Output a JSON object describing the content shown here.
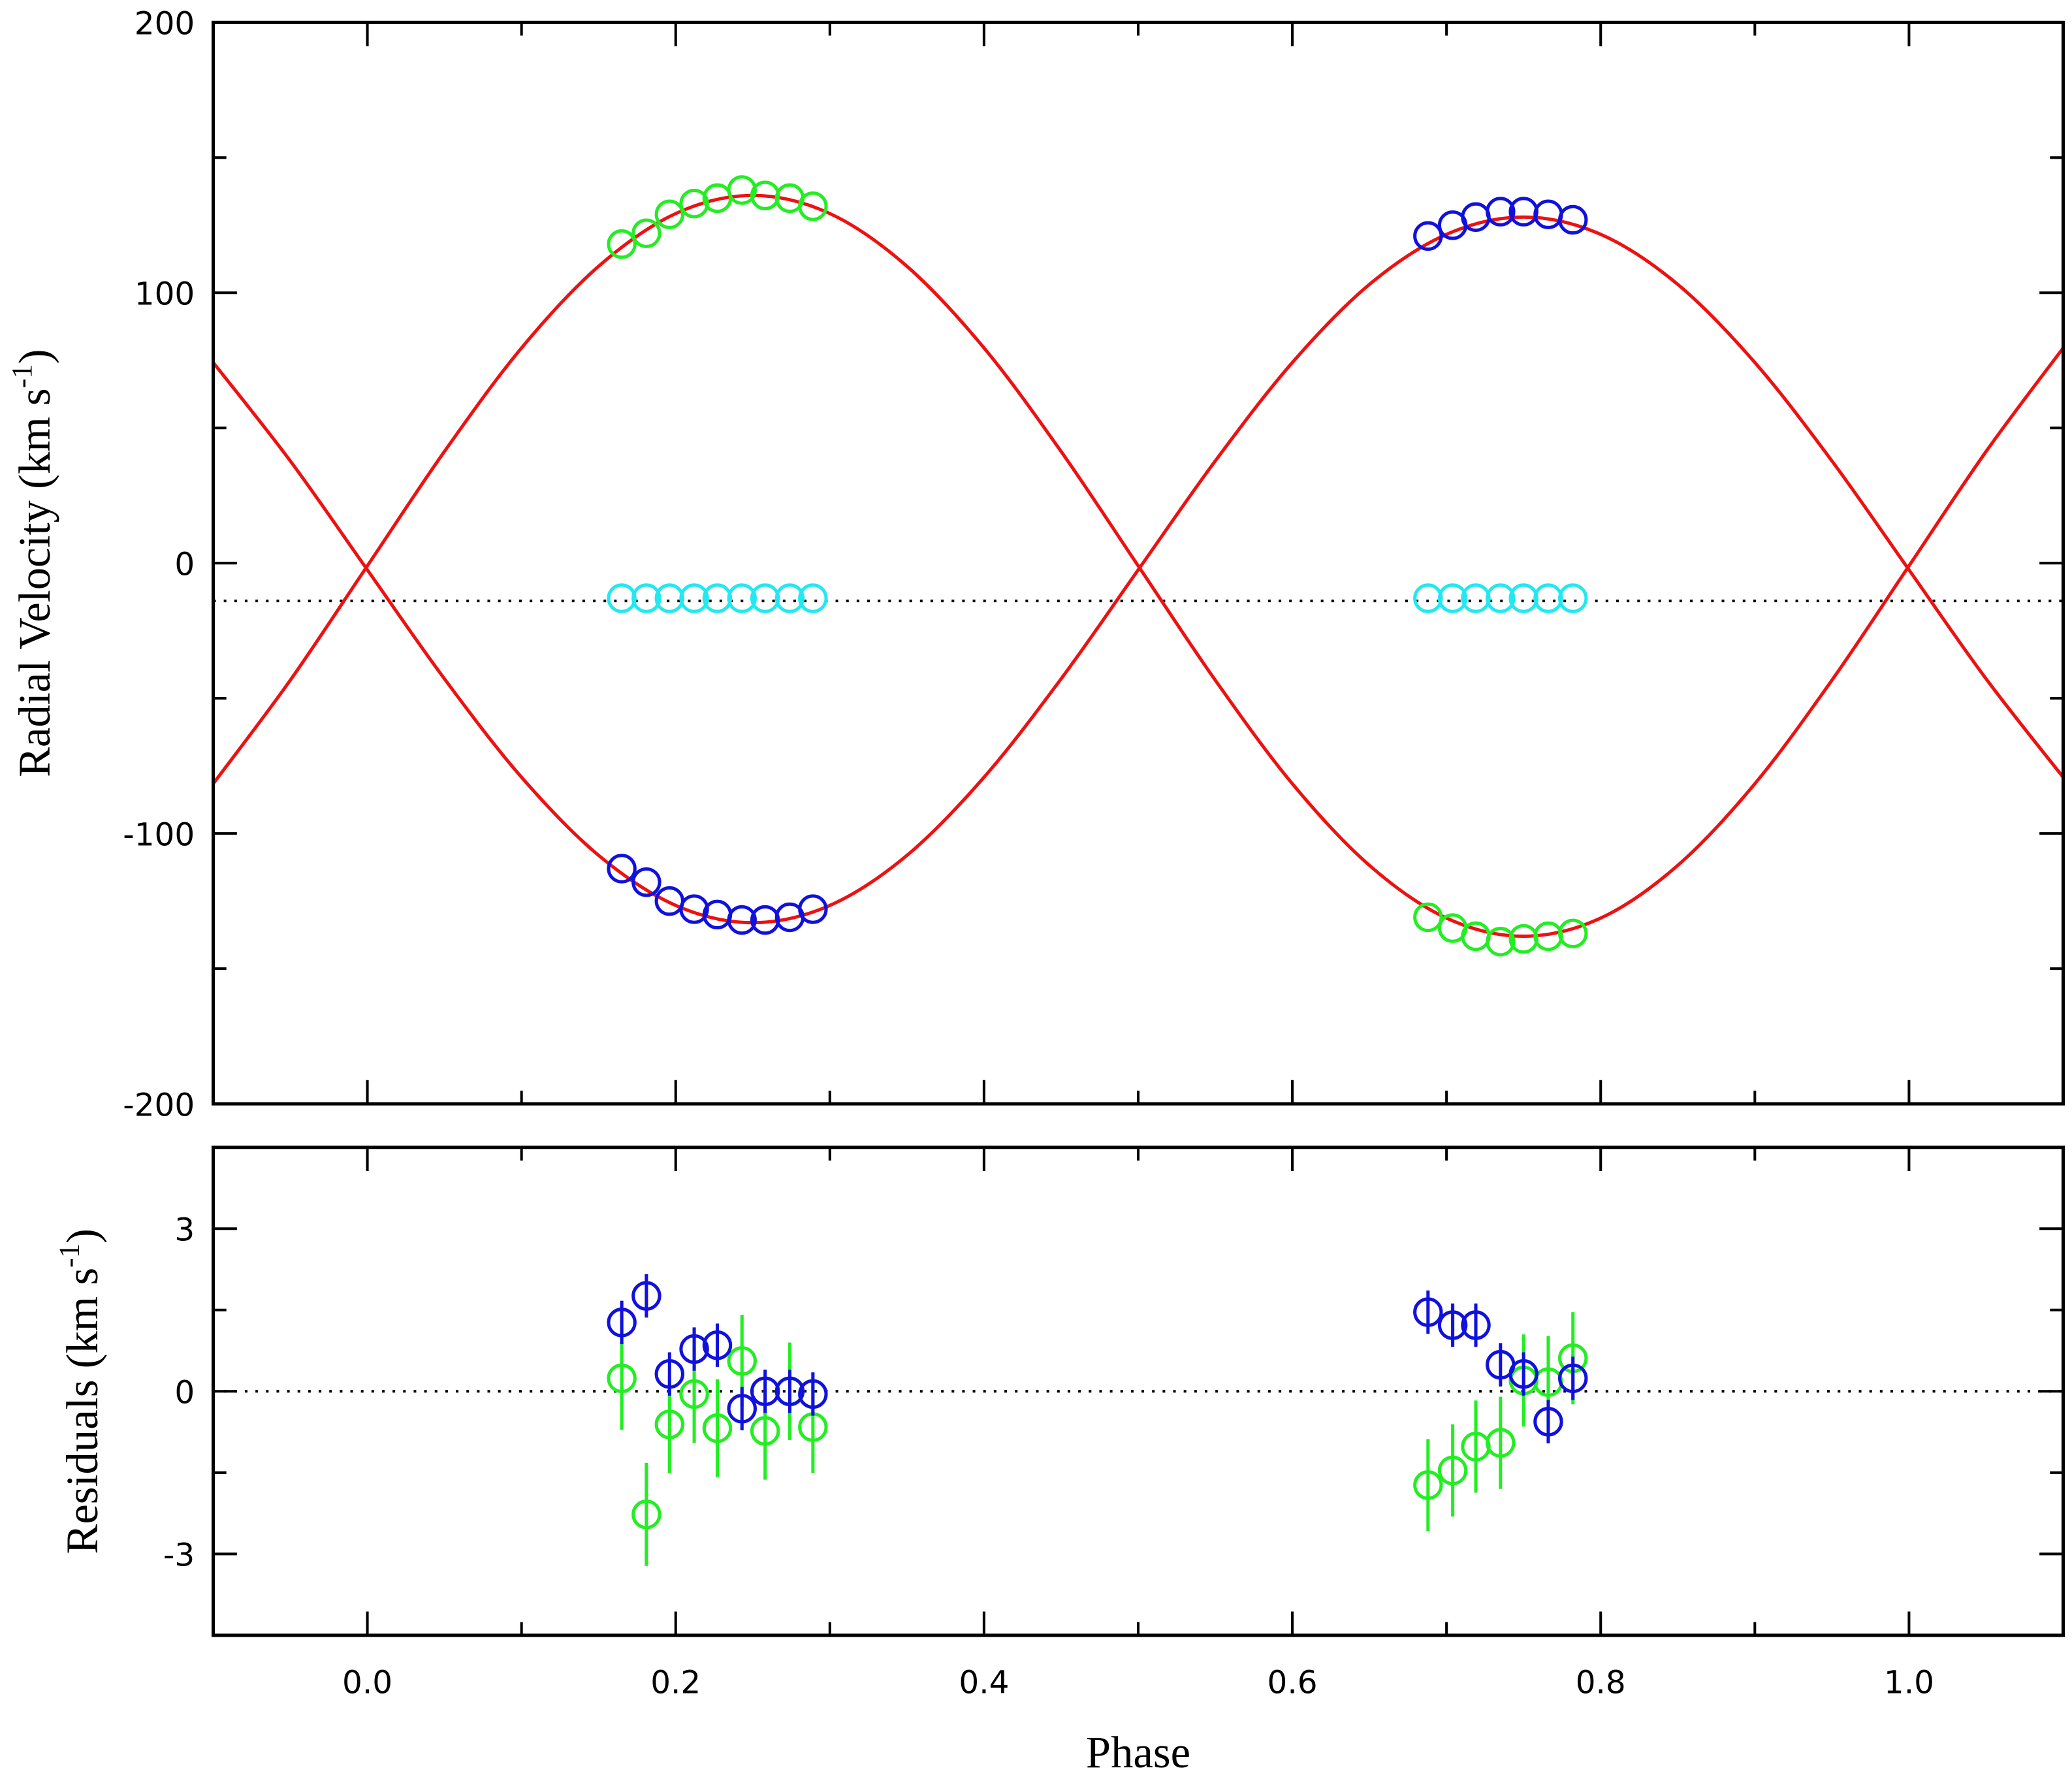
{
  "chart_data": [
    {
      "type": "scatter",
      "ylabel": {
        "text": "Radial Velocity (km s",
        "superscript": "-1",
        "close": ")"
      },
      "xlim": [
        -0.1,
        1.1
      ],
      "ylim": [
        -200,
        200
      ],
      "yticks": [
        -200,
        -100,
        0,
        100,
        200
      ],
      "yminor": [
        -150,
        -50,
        50,
        150
      ],
      "xticks": [
        {
          "value": 0,
          "label": "0.0"
        },
        0.2,
        0.4,
        0.6,
        0.8,
        {
          "value": 1,
          "label": "1.0"
        }
      ],
      "xminor": [
        0.1,
        0.3,
        0.5,
        0.7,
        0.9
      ],
      "reference_line": -14,
      "series": [
        {
          "style": "line",
          "color": "#ee1111",
          "x": [
            -0.1,
            -0.05,
            0,
            0.05,
            0.1,
            0.15,
            0.2,
            0.25,
            0.3,
            0.35,
            0.4,
            0.45,
            0.5,
            0.55,
            0.6,
            0.65,
            0.7,
            0.75,
            0.8,
            0.85,
            0.9,
            0.95,
            1.0,
            1.05,
            1.1
          ],
          "values": [
            -81.6,
            -43.3,
            -1,
            41.3,
            79.6,
            109.8,
            129.3,
            136,
            129.3,
            109.8,
            79.6,
            41.3,
            -1,
            -43.3,
            -81.6,
            -111.8,
            -131.3,
            -138,
            -131.3,
            -111.8,
            -81.6,
            -43.3,
            -1,
            41.3,
            79.6
          ]
        },
        {
          "style": "line",
          "color": "#ee1111",
          "x": [
            -0.1,
            -0.05,
            0,
            0.05,
            0.1,
            0.15,
            0.2,
            0.25,
            0.3,
            0.35,
            0.4,
            0.45,
            0.5,
            0.55,
            0.6,
            0.65,
            0.7,
            0.75,
            0.8,
            0.85,
            0.9,
            0.95,
            1.0,
            1.05,
            1.1
          ],
          "values": [
            74.2,
            37.8,
            -2.5,
            -42.8,
            -79.2,
            -108.1,
            -126.6,
            -133,
            -126.6,
            -108.1,
            -79.2,
            -42.8,
            -2.5,
            37.8,
            74.2,
            103.1,
            121.6,
            128,
            121.6,
            103.1,
            74.2,
            37.8,
            -2.5,
            -42.8,
            -79.2
          ]
        },
        {
          "style": "marker",
          "color": "#22ee22",
          "x": [
            0.165,
            0.181,
            0.196,
            0.212,
            0.227,
            0.243,
            0.258,
            0.274,
            0.289
          ],
          "values": [
            118,
            122,
            129,
            133,
            135,
            138,
            136,
            135,
            132
          ]
        },
        {
          "style": "marker",
          "color": "#1111dd",
          "x": [
            0.165,
            0.181,
            0.196,
            0.212,
            0.227,
            0.243,
            0.258,
            0.274,
            0.289
          ],
          "values": [
            -113,
            -118,
            -125,
            -128,
            -130,
            -132,
            -132,
            -131,
            -128
          ]
        },
        {
          "style": "marker",
          "color": "#22e8f0",
          "x": [
            0.165,
            0.181,
            0.196,
            0.212,
            0.227,
            0.243,
            0.258,
            0.274,
            0.289
          ],
          "values": [
            -13,
            -13,
            -13,
            -13,
            -13,
            -13,
            -13,
            -13,
            -13
          ]
        },
        {
          "style": "marker",
          "color": "#1111dd",
          "x": [
            0.688,
            0.704,
            0.719,
            0.735,
            0.75,
            0.766,
            0.782
          ],
          "values": [
            121,
            125,
            128,
            130,
            130,
            129,
            127
          ]
        },
        {
          "style": "marker",
          "color": "#22ee22",
          "x": [
            0.688,
            0.704,
            0.719,
            0.735,
            0.75,
            0.766,
            0.782
          ],
          "values": [
            -131,
            -135,
            -138,
            -140,
            -139,
            -138,
            -137
          ]
        },
        {
          "style": "marker",
          "color": "#22e8f0",
          "x": [
            0.688,
            0.704,
            0.719,
            0.735,
            0.75,
            0.766,
            0.782
          ],
          "values": [
            -13,
            -13,
            -13,
            -13,
            -13,
            -13,
            -13
          ]
        }
      ]
    },
    {
      "type": "scatter",
      "ylabel": {
        "text": "Residuals  (km s",
        "superscript": "-1",
        "close": ")"
      },
      "xlabel": "Phase",
      "xlim": [
        -0.1,
        1.1
      ],
      "ylim": [
        -4.5,
        4.5
      ],
      "yticks": [
        -3,
        0,
        3
      ],
      "yminor": [
        -1.5,
        1.5
      ],
      "xticks": [
        {
          "value": 0,
          "label": "0.0"
        },
        0.2,
        0.4,
        0.6,
        0.8,
        {
          "value": 1,
          "label": "1.0"
        }
      ],
      "xminor": [
        0.1,
        0.3,
        0.5,
        0.7,
        0.9
      ],
      "reference_line": 0,
      "series": [
        {
          "style": "marker",
          "color": "#22ee22",
          "x": [
            0.165,
            0.181,
            0.196,
            0.212,
            0.227,
            0.243,
            0.258,
            0.274,
            0.289
          ],
          "values": [
            0.24,
            -2.27,
            -0.61,
            -0.05,
            -0.68,
            0.56,
            -0.73,
            0,
            -0.66
          ],
          "errors": [
            0.95,
            0.95,
            0.9,
            0.9,
            0.9,
            0.85,
            0.9,
            0.9,
            0.85
          ]
        },
        {
          "style": "marker",
          "color": "#1111dd",
          "x": [
            0.165,
            0.181,
            0.196,
            0.212,
            0.227,
            0.243,
            0.258,
            0.274,
            0.289
          ],
          "values": [
            1.27,
            1.76,
            0.32,
            0.78,
            0.85,
            -0.32,
            0,
            0,
            -0.05
          ],
          "errors": [
            0.4,
            0.4,
            0.4,
            0.4,
            0.4,
            0.4,
            0.4,
            0.4,
            0.4
          ]
        },
        {
          "style": "marker",
          "color": "#22ee22",
          "x": [
            0.688,
            0.704,
            0.719,
            0.735,
            0.75,
            0.766,
            0.782
          ],
          "values": [
            -1.73,
            -1.46,
            -1.02,
            -0.95,
            0.2,
            0.17,
            0.61
          ],
          "errors": [
            0.85,
            0.85,
            0.85,
            0.85,
            0.85,
            0.85,
            0.85
          ]
        },
        {
          "style": "marker",
          "color": "#1111dd",
          "x": [
            0.688,
            0.704,
            0.719,
            0.735,
            0.75,
            0.766,
            0.782
          ],
          "values": [
            1.46,
            1.22,
            1.22,
            0.49,
            0.32,
            -0.56,
            0.24
          ],
          "errors": [
            0.4,
            0.4,
            0.4,
            0.4,
            0.4,
            0.4,
            0.4
          ]
        }
      ]
    }
  ]
}
